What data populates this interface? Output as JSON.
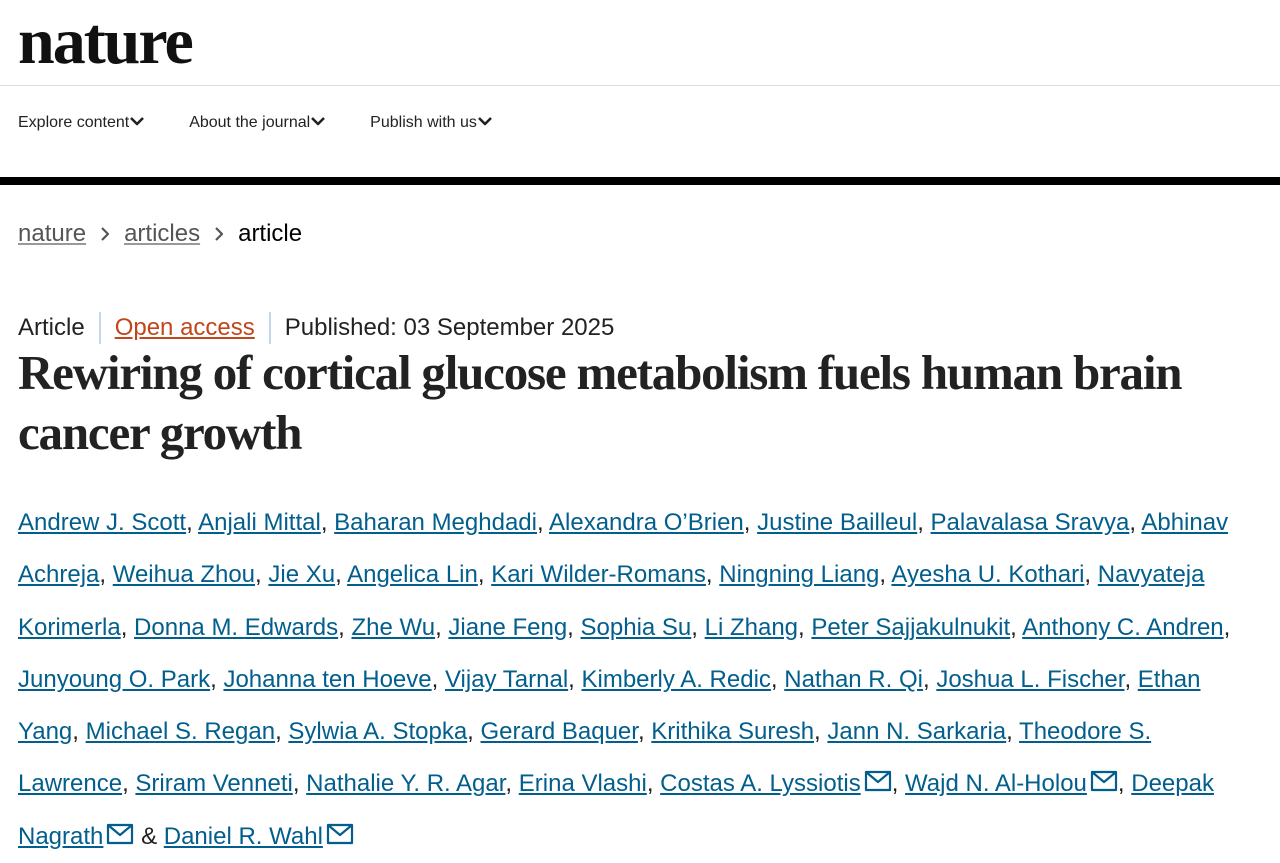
{
  "header": {
    "logo": "nature"
  },
  "nav": {
    "items": [
      "Explore content",
      "About the journal",
      "Publish with us"
    ]
  },
  "breadcrumb": {
    "items": [
      "nature",
      "articles",
      "article"
    ]
  },
  "article": {
    "type": "Article",
    "access": "Open access",
    "published": "Published: 03 September 2025",
    "title": "Rewiring of cortical glucose metabolism fuels human brain cancer growth",
    "author_separator": ",",
    "last_author_conjunction": "&",
    "authors": [
      {
        "name": "Andrew J. Scott"
      },
      {
        "name": "Anjali Mittal"
      },
      {
        "name": "Baharan Meghdadi"
      },
      {
        "name": "Alexandra O’Brien"
      },
      {
        "name": "Justine Bailleul"
      },
      {
        "name": "Palavalasa Sravya"
      },
      {
        "name": "Abhinav Achreja"
      },
      {
        "name": "Weihua Zhou"
      },
      {
        "name": "Jie Xu"
      },
      {
        "name": "Angelica Lin"
      },
      {
        "name": "Kari Wilder-Romans"
      },
      {
        "name": "Ningning Liang"
      },
      {
        "name": "Ayesha U. Kothari"
      },
      {
        "name": "Navyateja Korimerla"
      },
      {
        "name": "Donna M. Edwards"
      },
      {
        "name": "Zhe Wu"
      },
      {
        "name": "Jiane Feng"
      },
      {
        "name": "Sophia Su"
      },
      {
        "name": "Li Zhang"
      },
      {
        "name": "Peter Sajjakulnukit"
      },
      {
        "name": "Anthony C. Andren"
      },
      {
        "name": "Junyoung O. Park"
      },
      {
        "name": "Johanna ten Hoeve"
      },
      {
        "name": "Vijay Tarnal"
      },
      {
        "name": "Kimberly A. Redic"
      },
      {
        "name": "Nathan R. Qi"
      },
      {
        "name": "Joshua L. Fischer"
      },
      {
        "name": "Ethan Yang"
      },
      {
        "name": "Michael S. Regan"
      },
      {
        "name": "Sylwia A. Stopka"
      },
      {
        "name": "Gerard Baquer"
      },
      {
        "name": "Krithika Suresh"
      },
      {
        "name": "Jann N. Sarkaria"
      },
      {
        "name": "Theodore S. Lawrence"
      },
      {
        "name": "Sriram Venneti"
      },
      {
        "name": "Nathalie Y. R. Agar"
      },
      {
        "name": "Erina Vlashi"
      },
      {
        "name": "Costas A. Lyssiotis",
        "corresponding": true
      },
      {
        "name": "Wajd N. Al-Holou",
        "corresponding": true
      },
      {
        "name": "Deepak Nagrath",
        "corresponding": true
      },
      {
        "name": "Daniel R. Wahl",
        "corresponding": true
      }
    ]
  }
}
